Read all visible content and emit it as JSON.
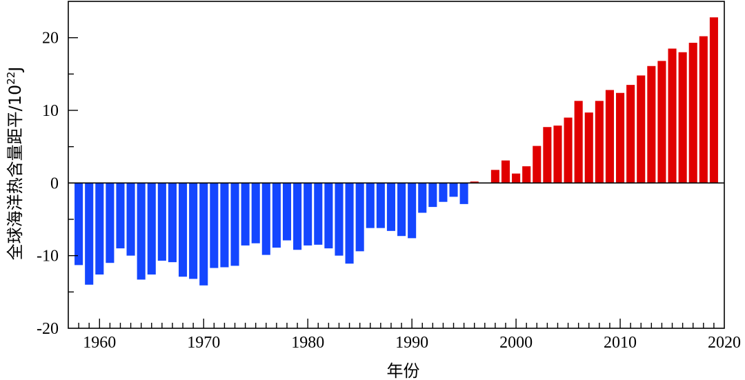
{
  "chart_data": {
    "type": "bar",
    "title": "",
    "xlabel": "年份",
    "ylabel": "全球海洋热含量距平/10",
    "ylabel_exponent": "22",
    "ylabel_unit": "J",
    "xlim": [
      1957,
      2020
    ],
    "ylim": [
      -20,
      25
    ],
    "xticks": [
      1960,
      1970,
      1980,
      1990,
      2000,
      2010,
      2020
    ],
    "yticks": [
      -20,
      -10,
      0,
      10,
      20
    ],
    "grid": false,
    "legend": "none",
    "colors": {
      "negative": "#1446FF",
      "positive": "#E00000",
      "axis": "#000000"
    },
    "x": [
      1958,
      1959,
      1960,
      1961,
      1962,
      1963,
      1964,
      1965,
      1966,
      1967,
      1968,
      1969,
      1970,
      1971,
      1972,
      1973,
      1974,
      1975,
      1976,
      1977,
      1978,
      1979,
      1980,
      1981,
      1982,
      1983,
      1984,
      1985,
      1986,
      1987,
      1988,
      1989,
      1990,
      1991,
      1992,
      1993,
      1994,
      1995,
      1996,
      1997,
      1998,
      1999,
      2000,
      2001,
      2002,
      2003,
      2004,
      2005,
      2006,
      2007,
      2008,
      2009,
      2010,
      2011,
      2012,
      2013,
      2014,
      2015,
      2016,
      2017,
      2018,
      2019
    ],
    "values": [
      -11.3,
      -14.0,
      -12.6,
      -11.0,
      -9.0,
      -10.0,
      -13.3,
      -12.6,
      -10.7,
      -10.9,
      -12.9,
      -13.2,
      -14.1,
      -11.7,
      -11.6,
      -11.4,
      -8.6,
      -8.3,
      -9.9,
      -8.9,
      -7.9,
      -9.2,
      -8.6,
      -8.5,
      -9.0,
      -10.0,
      -11.1,
      -9.4,
      -6.2,
      -6.2,
      -6.6,
      -7.3,
      -7.6,
      -4.1,
      -3.3,
      -2.6,
      -1.9,
      -2.9,
      0.2,
      0.0,
      1.8,
      3.1,
      1.3,
      2.3,
      5.1,
      7.7,
      7.9,
      9.0,
      11.3,
      9.7,
      11.3,
      12.8,
      12.4,
      13.5,
      14.8,
      16.1,
      16.8,
      18.5,
      18.0,
      19.3,
      20.2,
      22.8
    ]
  }
}
